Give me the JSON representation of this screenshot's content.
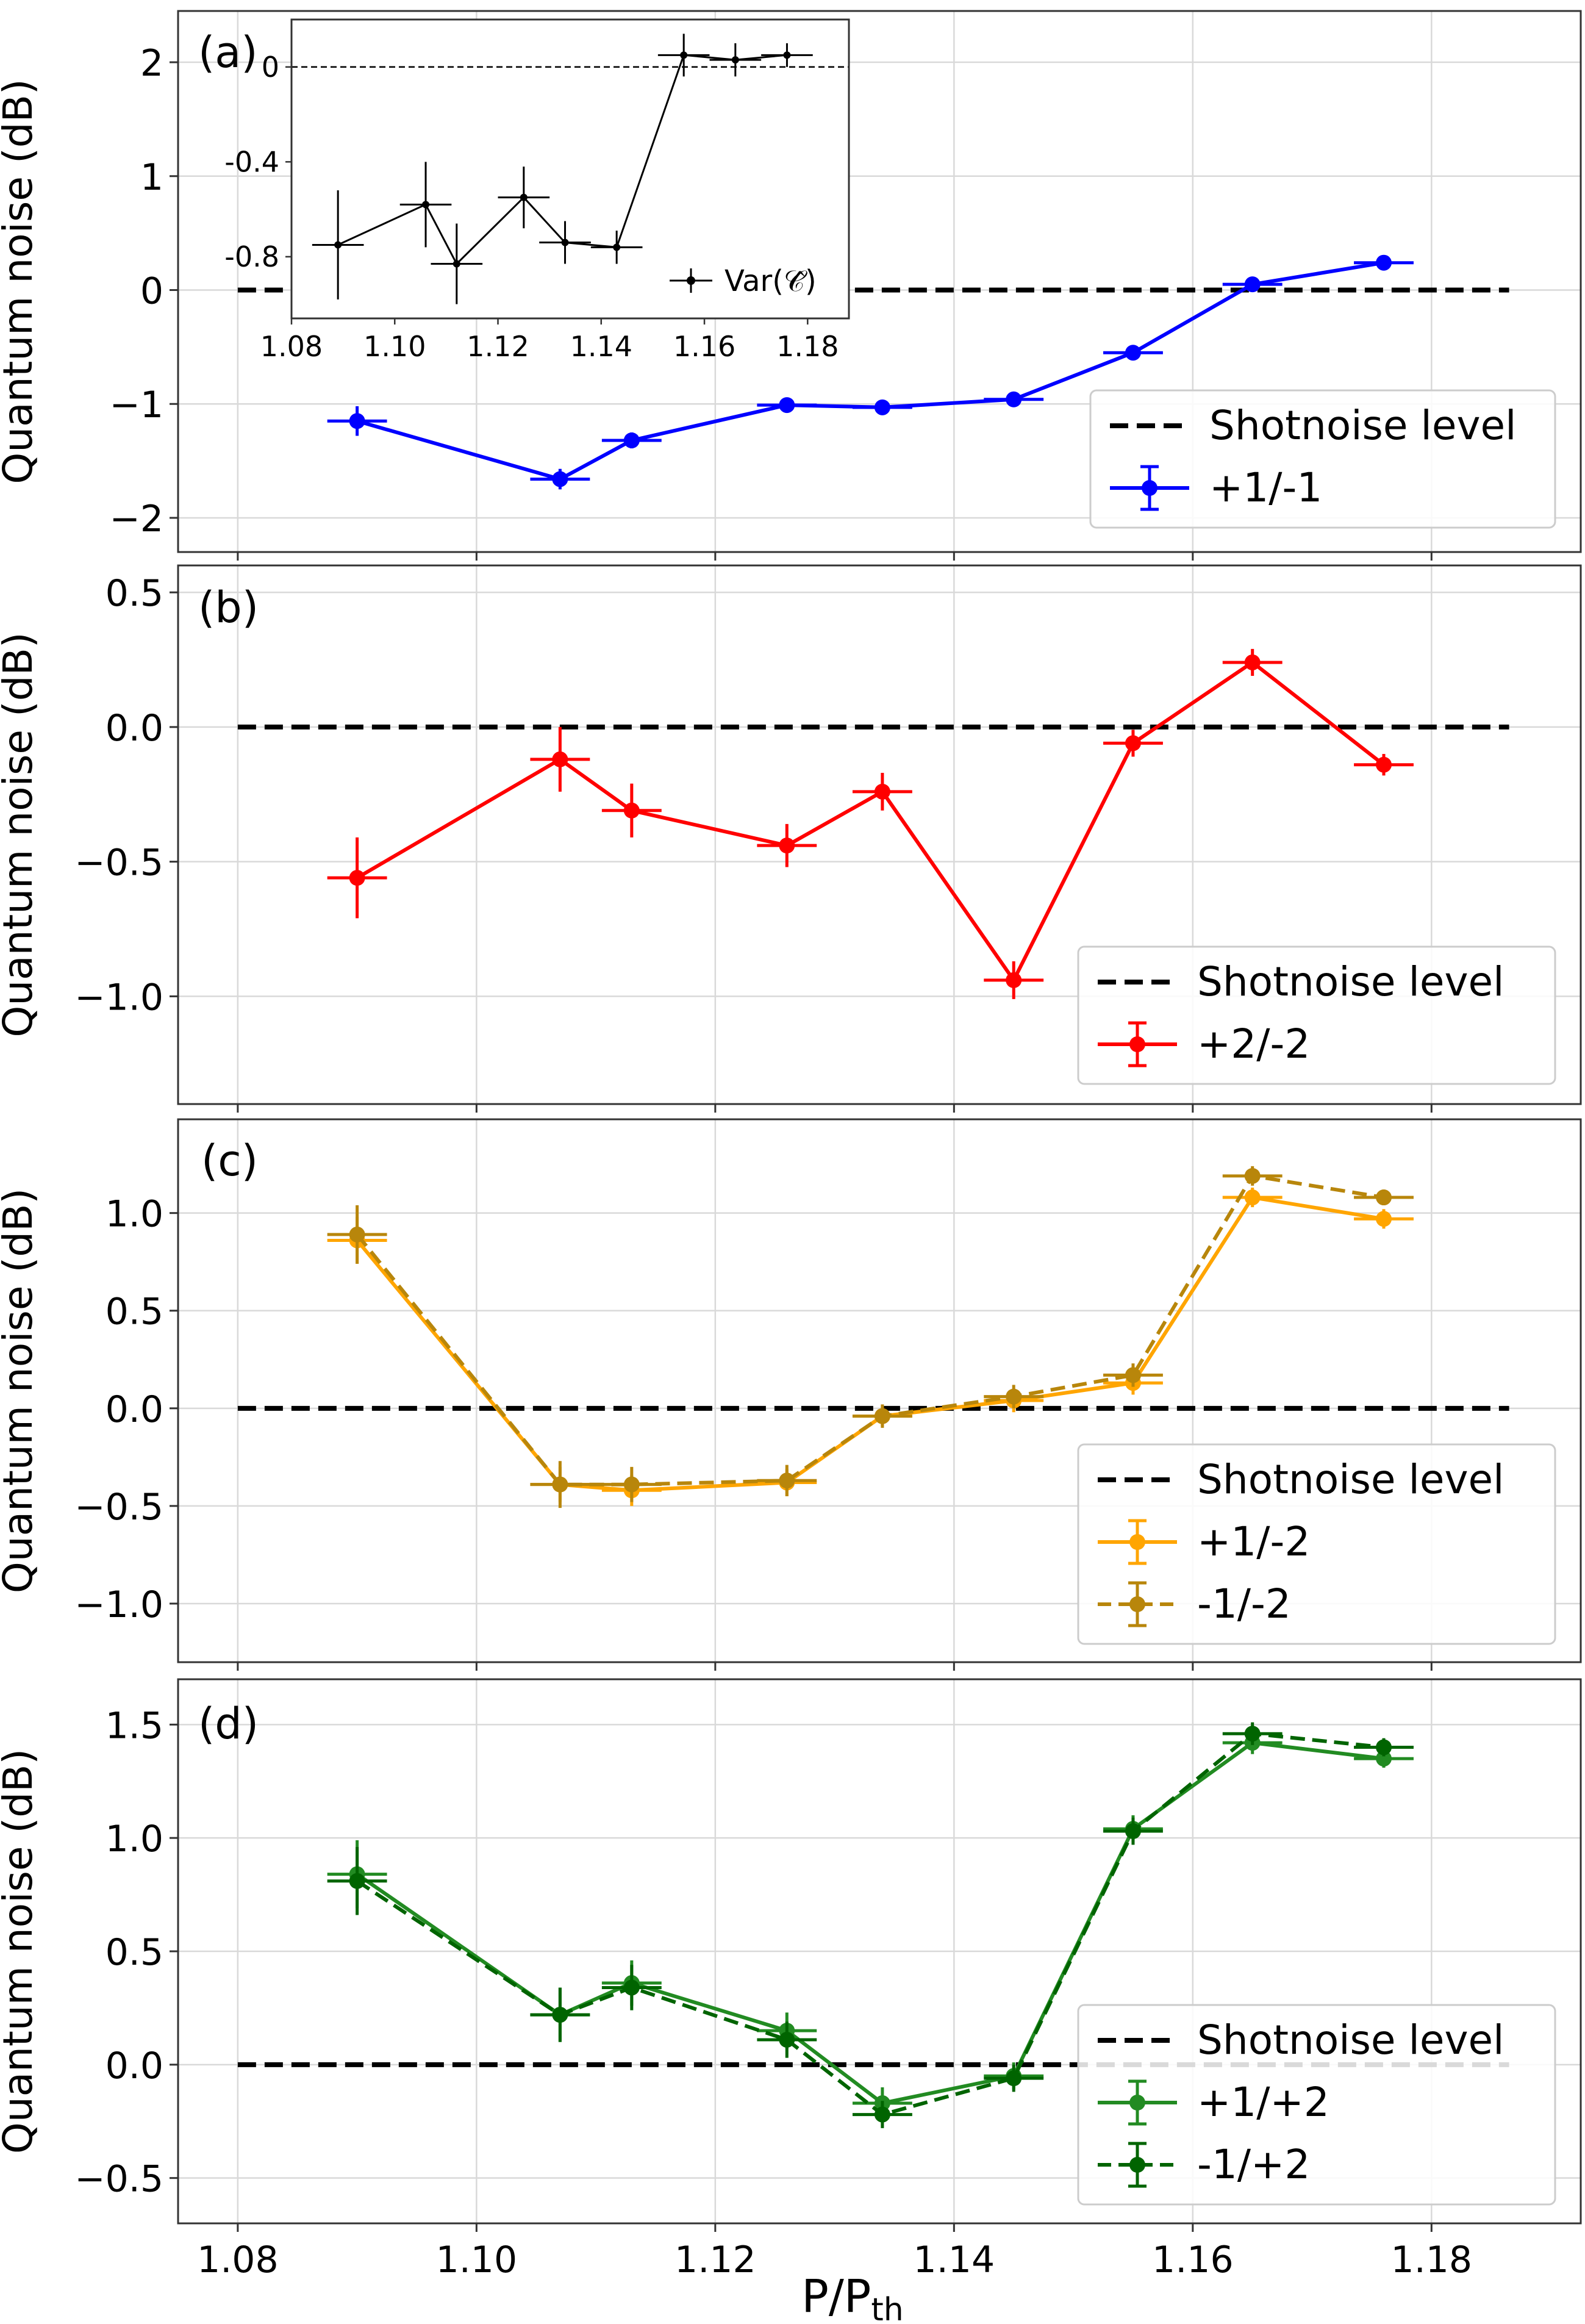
{
  "figure": {
    "xlabel": "P/P",
    "xlabel_sub": "th",
    "xlim": [
      1.075,
      1.1925
    ],
    "xticks": [
      1.08,
      1.1,
      1.12,
      1.14,
      1.16,
      1.18
    ],
    "xtick_labels": [
      "1.08",
      "1.10",
      "1.12",
      "1.14",
      "1.16",
      "1.18"
    ],
    "colors": {
      "blue": "#0000ff",
      "red": "#ff0000",
      "orange": "#ffa500",
      "darkgoldenrod": "#b8860b",
      "green": "#228b22",
      "darkgreen": "#006400",
      "black": "#000000",
      "grid": "#d9d9d9"
    }
  },
  "chart_data": [
    {
      "panel": "(a)",
      "type": "line",
      "ylabel": "Quantum noise (dB)",
      "ylim": [
        -2.3,
        2.45
      ],
      "yticks": [
        -2,
        -1,
        0,
        1,
        2
      ],
      "ytick_labels": [
        "−2",
        "−1",
        "0",
        "1",
        "2"
      ],
      "shotnoise": {
        "label": "Shotnoise level",
        "y": 0,
        "x_range": [
          1.08,
          1.1865
        ]
      },
      "series": [
        {
          "name": "+1/-1",
          "color": "#0000ff",
          "dashed": false,
          "x": [
            1.09,
            1.107,
            1.113,
            1.126,
            1.134,
            1.145,
            1.155,
            1.165,
            1.176
          ],
          "values": [
            -1.15,
            -1.66,
            -1.32,
            -1.01,
            -1.03,
            -0.96,
            -0.55,
            0.05,
            0.24
          ],
          "xerr": [
            0.0025,
            0.0025,
            0.0025,
            0.0025,
            0.0025,
            0.0025,
            0.0025,
            0.0025,
            0.0025
          ],
          "yerr": [
            0.13,
            0.09,
            0.07,
            0.06,
            0.05,
            0.05,
            0.04,
            0.03,
            0.03
          ]
        }
      ],
      "inset": {
        "xlim": [
          1.08,
          1.188
        ],
        "ylim": [
          -1.06,
          0.2
        ],
        "xticks": [
          1.08,
          1.1,
          1.12,
          1.14,
          1.16,
          1.18
        ],
        "xtick_labels": [
          "1.08",
          "1.10",
          "1.12",
          "1.14",
          "1.16",
          "1.18"
        ],
        "yticks": [
          0,
          -0.4,
          -0.8
        ],
        "ytick_labels": [
          "0",
          "-0.4",
          "-0.8"
        ],
        "legend": "Var(𝒞̂)",
        "series": {
          "x": [
            1.089,
            1.106,
            1.112,
            1.125,
            1.133,
            1.143,
            1.156,
            1.166,
            1.176
          ],
          "values": [
            -0.75,
            -0.58,
            -0.83,
            -0.55,
            -0.74,
            -0.76,
            0.05,
            0.03,
            0.05
          ],
          "xerr": [
            0.005,
            0.005,
            0.005,
            0.005,
            0.005,
            0.005,
            0.005,
            0.005,
            0.005
          ],
          "yerr": [
            0.23,
            0.18,
            0.17,
            0.13,
            0.09,
            0.07,
            0.09,
            0.07,
            0.05
          ]
        }
      }
    },
    {
      "panel": "(b)",
      "type": "line",
      "ylabel": "Quantum noise (dB)",
      "ylim": [
        -1.4,
        0.6
      ],
      "yticks": [
        -1.0,
        -0.5,
        0.0,
        0.5
      ],
      "ytick_labels": [
        "−1.0",
        "−0.5",
        "0.0",
        "0.5"
      ],
      "shotnoise": {
        "label": "Shotnoise level",
        "y": 0,
        "x_range": [
          1.08,
          1.1865
        ]
      },
      "series": [
        {
          "name": "+2/-2",
          "color": "#ff0000",
          "dashed": false,
          "x": [
            1.09,
            1.107,
            1.113,
            1.126,
            1.134,
            1.145,
            1.155,
            1.165,
            1.176
          ],
          "values": [
            -0.56,
            -0.12,
            -0.31,
            -0.44,
            -0.24,
            -0.94,
            -0.06,
            0.24,
            -0.14
          ],
          "xerr": [
            0.0025,
            0.0025,
            0.0025,
            0.0025,
            0.0025,
            0.0025,
            0.0025,
            0.0025,
            0.0025
          ],
          "yerr": [
            0.15,
            0.12,
            0.1,
            0.08,
            0.07,
            0.07,
            0.05,
            0.05,
            0.04
          ]
        }
      ]
    },
    {
      "panel": "(c)",
      "type": "line",
      "ylabel": "Quantum noise (dB)",
      "ylim": [
        -1.3,
        1.48
      ],
      "yticks": [
        -1.0,
        -0.5,
        0.0,
        0.5,
        1.0
      ],
      "ytick_labels": [
        "−1.0",
        "−0.5",
        "0.0",
        "0.5",
        "1.0"
      ],
      "shotnoise": {
        "label": "Shotnoise level",
        "y": 0,
        "x_range": [
          1.08,
          1.1865
        ]
      },
      "series": [
        {
          "name": "+1/-2",
          "color": "#ffa500",
          "dashed": false,
          "x": [
            1.09,
            1.107,
            1.113,
            1.126,
            1.134,
            1.145,
            1.155,
            1.165,
            1.176
          ],
          "values": [
            0.86,
            -0.39,
            -0.42,
            -0.38,
            -0.04,
            0.04,
            0.13,
            1.08,
            0.97
          ],
          "xerr": [
            0.0025,
            0.0025,
            0.0025,
            0.0025,
            0.0025,
            0.0025,
            0.0025,
            0.0025,
            0.0025
          ],
          "yerr": [
            0.12,
            0.09,
            0.08,
            0.07,
            0.05,
            0.06,
            0.06,
            0.05,
            0.05
          ]
        },
        {
          "name": "-1/-2",
          "color": "#b8860b",
          "dashed": true,
          "x": [
            1.09,
            1.107,
            1.113,
            1.126,
            1.134,
            1.145,
            1.155,
            1.165,
            1.176
          ],
          "values": [
            0.89,
            -0.39,
            -0.39,
            -0.37,
            -0.04,
            0.06,
            0.17,
            1.19,
            1.08
          ],
          "xerr": [
            0.0025,
            0.0025,
            0.0025,
            0.0025,
            0.0025,
            0.0025,
            0.0025,
            0.0025,
            0.0025
          ],
          "yerr": [
            0.15,
            0.12,
            0.09,
            0.08,
            0.06,
            0.06,
            0.06,
            0.05,
            0.04
          ]
        }
      ]
    },
    {
      "panel": "(d)",
      "type": "line",
      "ylabel": "Quantum noise (dB)",
      "ylim": [
        -0.7,
        1.7
      ],
      "yticks": [
        -0.5,
        0.0,
        0.5,
        1.0,
        1.5
      ],
      "ytick_labels": [
        "−0.5",
        "0.0",
        "0.5",
        "1.0",
        "1.5"
      ],
      "shotnoise": {
        "label": "Shotnoise level",
        "y": 0,
        "x_range": [
          1.08,
          1.1865
        ]
      },
      "series": [
        {
          "name": "+1/+2",
          "color": "#228b22",
          "dashed": false,
          "x": [
            1.09,
            1.107,
            1.113,
            1.126,
            1.134,
            1.145,
            1.155,
            1.165,
            1.176
          ],
          "values": [
            0.84,
            0.22,
            0.36,
            0.15,
            -0.17,
            -0.05,
            1.04,
            1.42,
            1.35
          ],
          "xerr": [
            0.0025,
            0.0025,
            0.0025,
            0.0025,
            0.0025,
            0.0025,
            0.0025,
            0.0025,
            0.0025
          ],
          "yerr": [
            0.15,
            0.12,
            0.1,
            0.08,
            0.07,
            0.06,
            0.06,
            0.05,
            0.04
          ]
        },
        {
          "name": "-1/+2",
          "color": "#006400",
          "dashed": true,
          "x": [
            1.09,
            1.107,
            1.113,
            1.126,
            1.134,
            1.145,
            1.155,
            1.165,
            1.176
          ],
          "values": [
            0.81,
            0.22,
            0.34,
            0.11,
            -0.22,
            -0.06,
            1.03,
            1.46,
            1.4
          ],
          "xerr": [
            0.0025,
            0.0025,
            0.0025,
            0.0025,
            0.0025,
            0.0025,
            0.0025,
            0.0025,
            0.0025
          ],
          "yerr": [
            0.15,
            0.12,
            0.1,
            0.08,
            0.06,
            0.06,
            0.06,
            0.05,
            0.04
          ]
        }
      ]
    }
  ]
}
